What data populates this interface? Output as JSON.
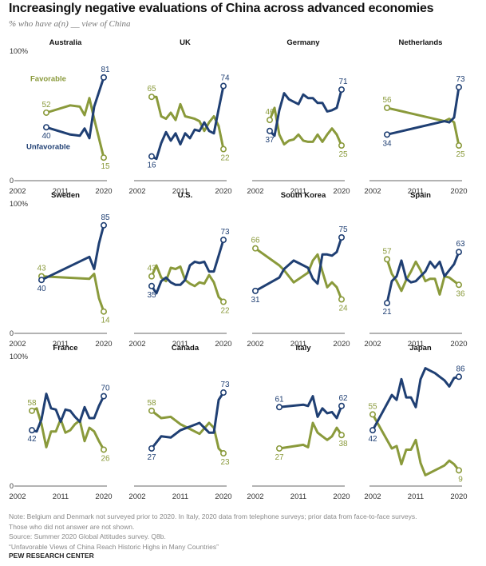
{
  "header": {
    "title": "Increasingly negative evaluations of China across advanced economies",
    "subtitle": "% who have a(n) __ view of China"
  },
  "footer": {
    "notes": [
      "Note: Belgium and Denmark not surveyed prior to 2020. In Italy, 2020 data from telephone surveys; prior data from face-to-face surveys.",
      "Those who did not answer are not shown.",
      "Source: Summer 2020 Global Attitudes survey. Q8b.",
      "“Unfavorable Views of China Reach Historic Highs in Many Countries”"
    ],
    "brand": "PEW RESEARCH CENTER"
  },
  "colors": {
    "favorable": "#8a9a3b",
    "unfavorable": "#1f3f73",
    "axis": "#9a9a9a"
  },
  "chart_data": {
    "type": "line",
    "title": "Increasingly negative evaluations of China across advanced economies",
    "subtitle": "% who have a(n) __ view of China",
    "xlim": [
      2002,
      2020
    ],
    "ylim": [
      0,
      100
    ],
    "xticks": [
      "2002",
      "2011",
      "2020"
    ],
    "ytick_labels": [
      "0",
      "100%"
    ],
    "legend": {
      "favorable": "Favorable",
      "unfavorable": "Unfavorable",
      "placement": "inline in Australia panel"
    },
    "grid": false,
    "panels": [
      {
        "country": "Australia",
        "favorable": {
          "x": [
            2008,
            2013,
            2015,
            2016,
            2017,
            2018,
            2020
          ],
          "y": [
            52,
            58,
            57,
            50,
            64,
            47,
            15
          ]
        },
        "unfavorable": {
          "x": [
            2008,
            2013,
            2015,
            2016,
            2017,
            2018,
            2020
          ],
          "y": [
            40,
            34,
            33,
            39,
            31,
            57,
            81
          ]
        },
        "labels": {
          "fav_start": "52",
          "fav_end": "15",
          "unf_start": "40",
          "unf_end": "81"
        }
      },
      {
        "country": "UK",
        "favorable": {
          "x": [
            2005,
            2006,
            2007,
            2008,
            2009,
            2010,
            2011,
            2012,
            2013,
            2014,
            2015,
            2016,
            2017,
            2018,
            2019,
            2020
          ],
          "y": [
            65,
            65,
            49,
            47,
            52,
            46,
            59,
            49,
            48,
            47,
            45,
            37,
            44,
            49,
            41,
            22
          ]
        },
        "unfavorable": {
          "x": [
            2005,
            2006,
            2007,
            2008,
            2009,
            2010,
            2011,
            2012,
            2013,
            2014,
            2015,
            2016,
            2017,
            2018,
            2019,
            2020
          ],
          "y": [
            16,
            14,
            27,
            36,
            29,
            35,
            26,
            35,
            31,
            38,
            37,
            44,
            37,
            35,
            55,
            74
          ]
        },
        "labels": {
          "fav_start": "65",
          "fav_end": "22",
          "unf_start": "16",
          "unf_end": "74"
        }
      },
      {
        "country": "Germany",
        "favorable": {
          "x": [
            2005,
            2006,
            2007,
            2008,
            2009,
            2010,
            2011,
            2012,
            2013,
            2014,
            2015,
            2016,
            2017,
            2018,
            2019,
            2020
          ],
          "y": [
            46,
            56,
            34,
            26,
            29,
            30,
            34,
            29,
            28,
            28,
            34,
            28,
            34,
            39,
            34,
            25
          ]
        },
        "unfavorable": {
          "x": [
            2005,
            2006,
            2007,
            2008,
            2009,
            2010,
            2011,
            2012,
            2013,
            2014,
            2015,
            2016,
            2017,
            2018,
            2019,
            2020
          ],
          "y": [
            37,
            33,
            54,
            68,
            63,
            61,
            59,
            67,
            64,
            64,
            60,
            60,
            53,
            54,
            56,
            71
          ]
        },
        "labels": {
          "fav_start": "46",
          "fav_end": "25",
          "unf_start": "37",
          "unf_end": "71"
        }
      },
      {
        "country": "Netherlands",
        "favorable": {
          "x": [
            2005,
            2017,
            2018,
            2019,
            2020
          ],
          "y": [
            56,
            45,
            47,
            44,
            25
          ]
        },
        "unfavorable": {
          "x": [
            2005,
            2017,
            2018,
            2019,
            2020
          ],
          "y": [
            34,
            45,
            44,
            48,
            73
          ]
        },
        "labels": {
          "fav_start": "56",
          "fav_end": "25",
          "unf_start": "34",
          "unf_end": "73"
        }
      },
      {
        "country": "Sweden",
        "favorable": {
          "x": [
            2007,
            2017,
            2018,
            2019,
            2020
          ],
          "y": [
            43,
            41,
            45,
            25,
            14
          ]
        },
        "unfavorable": {
          "x": [
            2007,
            2017,
            2018,
            2019,
            2020
          ],
          "y": [
            40,
            59,
            49,
            70,
            85
          ]
        },
        "labels": {
          "fav_start": "43",
          "fav_end": "14",
          "unf_start": "40",
          "unf_end": "85"
        }
      },
      {
        "country": "U.S.",
        "favorable": {
          "x": [
            2005,
            2006,
            2007,
            2008,
            2009,
            2010,
            2011,
            2012,
            2013,
            2014,
            2015,
            2016,
            2017,
            2018,
            2019,
            2020
          ],
          "y": [
            43,
            52,
            42,
            39,
            50,
            49,
            51,
            40,
            37,
            35,
            38,
            37,
            44,
            38,
            26,
            22
          ]
        },
        "unfavorable": {
          "x": [
            2005,
            2006,
            2007,
            2008,
            2009,
            2010,
            2011,
            2012,
            2013,
            2014,
            2015,
            2016,
            2017,
            2018,
            2019,
            2020
          ],
          "y": [
            35,
            29,
            39,
            42,
            38,
            36,
            36,
            40,
            52,
            55,
            54,
            55,
            47,
            47,
            60,
            73
          ]
        },
        "labels": {
          "fav_start": "43",
          "fav_end": "22",
          "unf_start": "35",
          "unf_end": "73"
        }
      },
      {
        "country": "South Korea",
        "favorable": {
          "x": [
            2002,
            2007,
            2008,
            2010,
            2013,
            2014,
            2015,
            2016,
            2017,
            2018,
            2019,
            2020
          ],
          "y": [
            66,
            52,
            48,
            38,
            46,
            56,
            61,
            47,
            34,
            38,
            34,
            24
          ]
        },
        "unfavorable": {
          "x": [
            2002,
            2007,
            2008,
            2010,
            2013,
            2014,
            2015,
            2016,
            2017,
            2018,
            2019,
            2020
          ],
          "y": [
            31,
            42,
            49,
            56,
            50,
            41,
            37,
            61,
            61,
            60,
            63,
            75
          ]
        },
        "labels": {
          "fav_start": "66",
          "fav_end": "24",
          "unf_start": "31",
          "unf_end": "75"
        }
      },
      {
        "country": "Spain",
        "favorable": {
          "x": [
            2005,
            2006,
            2007,
            2008,
            2009,
            2010,
            2011,
            2012,
            2013,
            2014,
            2015,
            2016,
            2017,
            2018,
            2019,
            2020
          ],
          "y": [
            57,
            45,
            39,
            31,
            40,
            47,
            55,
            48,
            39,
            41,
            41,
            28,
            43,
            42,
            39,
            36
          ]
        },
        "unfavorable": {
          "x": [
            2005,
            2006,
            2007,
            2008,
            2009,
            2010,
            2011,
            2012,
            2013,
            2014,
            2015,
            2016,
            2017,
            2018,
            2019,
            2020
          ],
          "y": [
            21,
            39,
            43,
            56,
            41,
            38,
            39,
            43,
            47,
            55,
            50,
            55,
            43,
            48,
            53,
            63
          ]
        },
        "labels": {
          "fav_start": "57",
          "fav_end": "36",
          "unf_start": "21",
          "unf_end": "63"
        }
      },
      {
        "country": "France",
        "favorable": {
          "x": [
            2005,
            2006,
            2007,
            2008,
            2009,
            2010,
            2011,
            2012,
            2013,
            2014,
            2015,
            2016,
            2017,
            2018,
            2019,
            2020
          ],
          "y": [
            58,
            60,
            47,
            28,
            41,
            41,
            51,
            40,
            42,
            47,
            50,
            33,
            44,
            41,
            33,
            26
          ]
        },
        "unfavorable": {
          "x": [
            2005,
            2006,
            2007,
            2008,
            2009,
            2010,
            2011,
            2012,
            2013,
            2014,
            2015,
            2016,
            2017,
            2018,
            2019,
            2020
          ],
          "y": [
            42,
            41,
            51,
            72,
            60,
            59,
            49,
            59,
            58,
            53,
            49,
            61,
            52,
            52,
            62,
            70
          ]
        },
        "labels": {
          "fav_start": "58",
          "fav_end": "26",
          "unf_start": "42",
          "unf_end": "70"
        }
      },
      {
        "country": "Canada",
        "favorable": {
          "x": [
            2005,
            2007,
            2009,
            2011,
            2013,
            2015,
            2017,
            2018,
            2019,
            2020
          ],
          "y": [
            58,
            52,
            53,
            47,
            43,
            39,
            48,
            44,
            27,
            23
          ]
        },
        "unfavorable": {
          "x": [
            2005,
            2007,
            2009,
            2011,
            2013,
            2015,
            2017,
            2018,
            2019,
            2020
          ],
          "y": [
            27,
            37,
            36,
            42,
            45,
            48,
            40,
            40,
            67,
            73
          ]
        },
        "labels": {
          "fav_start": "58",
          "fav_end": "23",
          "unf_start": "27",
          "unf_end": "73"
        }
      },
      {
        "country": "Italy",
        "favorable": {
          "x": [
            2007,
            2012,
            2013,
            2014,
            2015,
            2016,
            2017,
            2018,
            2019,
            2020
          ],
          "y": [
            27,
            30,
            28,
            48,
            40,
            37,
            34,
            37,
            44,
            38
          ]
        },
        "unfavorable": {
          "x": [
            2007,
            2012,
            2013,
            2014,
            2015,
            2016,
            2017,
            2018,
            2019,
            2020
          ],
          "y": [
            61,
            63,
            62,
            70,
            53,
            60,
            56,
            57,
            52,
            62
          ]
        },
        "labels": {
          "fav_start": "27",
          "fav_end": "38",
          "unf_start": "61",
          "unf_end": "62"
        }
      },
      {
        "country": "Japan",
        "favorable": {
          "x": [
            2002,
            2006,
            2007,
            2008,
            2009,
            2010,
            2011,
            2012,
            2013,
            2014,
            2015,
            2016,
            2017,
            2018,
            2019,
            2020
          ],
          "y": [
            55,
            27,
            29,
            14,
            26,
            26,
            34,
            15,
            5,
            7,
            9,
            11,
            13,
            17,
            14,
            9
          ]
        },
        "unfavorable": {
          "x": [
            2002,
            2006,
            2007,
            2008,
            2009,
            2010,
            2011,
            2012,
            2013,
            2014,
            2015,
            2016,
            2017,
            2018,
            2019,
            2020
          ],
          "y": [
            42,
            71,
            67,
            84,
            69,
            69,
            61,
            84,
            93,
            91,
            89,
            86,
            83,
            78,
            85,
            86
          ]
        },
        "labels": {
          "fav_start": "55",
          "fav_end": "9",
          "unf_start": "42",
          "unf_end": "86"
        }
      }
    ]
  }
}
